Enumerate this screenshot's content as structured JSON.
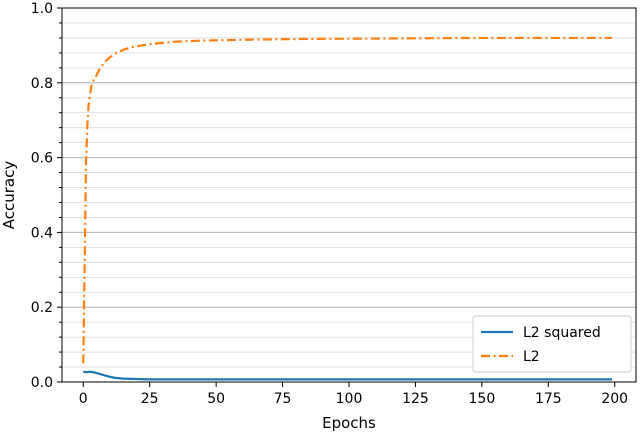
{
  "chart_data": {
    "type": "line",
    "xlabel": "Epochs",
    "ylabel": "Accuracy",
    "xlim": [
      -8,
      208
    ],
    "ylim": [
      0,
      1.0
    ],
    "xticks": [
      0,
      25,
      50,
      75,
      100,
      125,
      150,
      175,
      200
    ],
    "yticks": [
      0.0,
      0.2,
      0.4,
      0.6,
      0.8,
      1.0
    ],
    "ytick_labels": [
      "0.0",
      "0.2",
      "0.4",
      "0.6",
      "0.8",
      "1.0"
    ],
    "grid": "horizontal, major and minor",
    "legend_position": "lower-right",
    "series": [
      {
        "name": "L2 squared",
        "color": "#1f77b4",
        "style": "solid",
        "x": [
          0,
          1,
          2,
          3,
          4,
          5,
          6,
          8,
          10,
          12,
          15,
          20,
          25,
          30,
          50,
          75,
          100,
          125,
          150,
          175,
          199
        ],
        "y": [
          0.028,
          0.026,
          0.027,
          0.027,
          0.026,
          0.024,
          0.022,
          0.018,
          0.014,
          0.011,
          0.009,
          0.008,
          0.007,
          0.007,
          0.007,
          0.007,
          0.007,
          0.007,
          0.007,
          0.007,
          0.007
        ]
      },
      {
        "name": "L2",
        "color": "#ff7f0e",
        "style": "dashdot",
        "x": [
          0,
          0.5,
          1,
          1.5,
          2,
          3,
          4,
          5,
          6,
          8,
          10,
          12,
          15,
          18,
          22,
          27,
          35,
          45,
          60,
          80,
          100,
          125,
          150,
          175,
          199
        ],
        "y": [
          0.05,
          0.3,
          0.58,
          0.68,
          0.74,
          0.79,
          0.81,
          0.82,
          0.835,
          0.855,
          0.868,
          0.878,
          0.888,
          0.895,
          0.9,
          0.905,
          0.91,
          0.913,
          0.915,
          0.917,
          0.918,
          0.919,
          0.92,
          0.92,
          0.92
        ]
      }
    ]
  }
}
